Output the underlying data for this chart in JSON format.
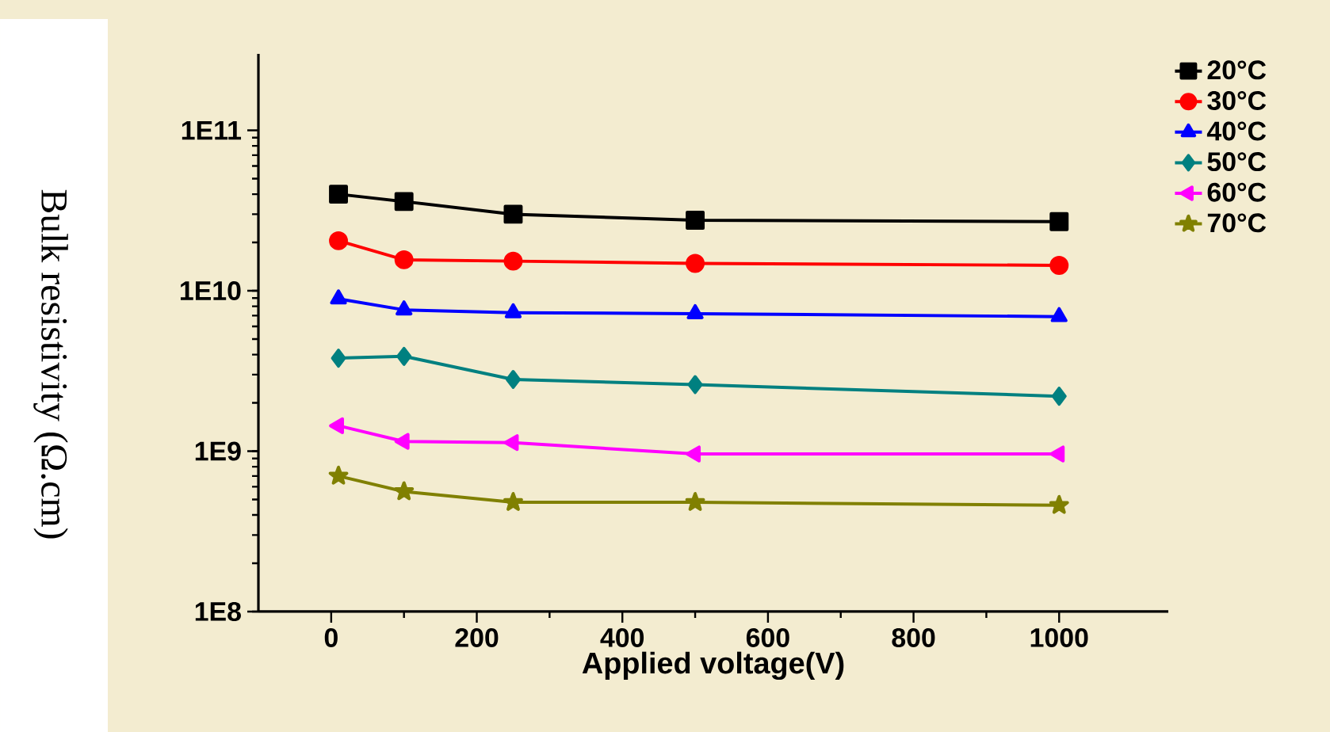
{
  "chart_data": {
    "type": "line",
    "xlabel": "Applied voltage(V)",
    "ylabel": "Bulk resistivity (Ω.cm)",
    "x": [
      10,
      100,
      250,
      500,
      1000
    ],
    "series": [
      {
        "name": "20°C",
        "color": "#000000",
        "marker": "square",
        "values": [
          40000000000.0,
          36000000000.0,
          30000000000.0,
          27500000000.0,
          27000000000.0
        ]
      },
      {
        "name": "30°C",
        "color": "#ff0000",
        "marker": "circle",
        "values": [
          20500000000.0,
          15600000000.0,
          15300000000.0,
          14800000000.0,
          14400000000.0
        ]
      },
      {
        "name": "40°C",
        "color": "#0000ff",
        "marker": "triangle",
        "values": [
          8900000000.0,
          7600000000.0,
          7300000000.0,
          7200000000.0,
          6900000000.0
        ]
      },
      {
        "name": "50°C",
        "color": "#008080",
        "marker": "diamond",
        "values": [
          3800000000.0,
          3900000000.0,
          2800000000.0,
          2600000000.0,
          2200000000.0
        ]
      },
      {
        "name": "60°C",
        "color": "#ff00ff",
        "marker": "triangle-left",
        "values": [
          1440000000.0,
          1150000000.0,
          1130000000.0,
          960000000.0,
          960000000.0
        ]
      },
      {
        "name": "70°C",
        "color": "#808000",
        "marker": "star",
        "values": [
          700000000.0,
          560000000.0,
          480000000.0,
          480000000.0,
          460000000.0
        ]
      }
    ],
    "log": "y",
    "xlim": [
      -100,
      1150
    ],
    "ylim": [
      100000000.0,
      300000000000.0
    ],
    "xticks": [
      0,
      200,
      400,
      600,
      800,
      1000
    ],
    "yticks": [
      {
        "value": 100000000.0,
        "label": "1E8"
      },
      {
        "value": 1000000000.0,
        "label": "1E9"
      },
      {
        "value": 10000000000.0,
        "label": "1E10"
      },
      {
        "value": 100000000000.0,
        "label": "1E11"
      }
    ],
    "legend": "top right",
    "grid": false,
    "line_style": "solid"
  }
}
